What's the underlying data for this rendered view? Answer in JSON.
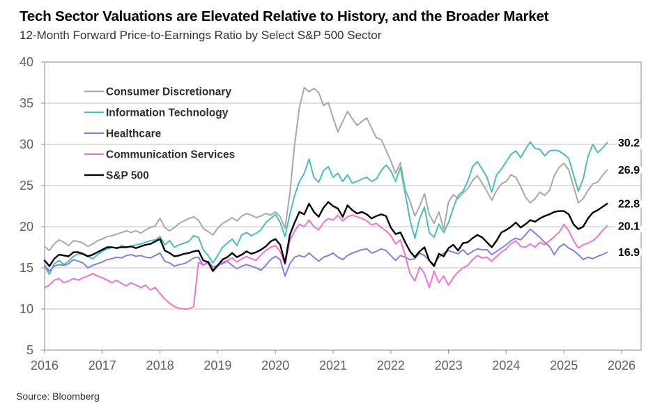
{
  "header": {
    "title": "Tech Sector Valuations are Elevated Relative to History, and the Broader Market",
    "subtitle": "12-Month Forward Price-to-Earnings Ratio by Select S&P 500 Sector"
  },
  "footer": {
    "source": "Source: Bloomberg"
  },
  "chart_data": {
    "type": "line",
    "title": "Tech Sector Valuations are Elevated Relative to History, and the Broader Market",
    "subtitle": "12-Month Forward Price-to-Earnings Ratio by Select S&P 500 Sector",
    "x_start": "2016-01",
    "x_interval": "monthly",
    "x_tick_labels": [
      "2016",
      "2017",
      "2018",
      "2019",
      "2020",
      "2021",
      "2022",
      "2023",
      "2024",
      "2025",
      "2026"
    ],
    "y_ticks": [
      5,
      10,
      15,
      20,
      25,
      30,
      35,
      40
    ],
    "ylim": [
      5,
      40
    ],
    "grid": "horizontal-only",
    "legend_position": "top-left-inside",
    "colors": {
      "axis": "#9b9b9b",
      "grid": "#c2c2c2",
      "tick_label": "#606060",
      "legend_text": "#2e2e2e",
      "end_label_text": "#000000"
    },
    "series": [
      {
        "name": "Consumer Discretionary",
        "color": "#a8a8a8",
        "end_label": "26.9",
        "values": [
          17.6,
          17.1,
          17.9,
          18.4,
          18.1,
          17.7,
          18.3,
          18.2,
          18.0,
          17.6,
          17.9,
          18.3,
          18.5,
          18.8,
          18.9,
          19.1,
          19.3,
          19.5,
          19.3,
          19.5,
          19.2,
          19.6,
          19.9,
          20.1,
          21.0,
          19.9,
          19.5,
          19.9,
          20.4,
          20.7,
          21.0,
          21.2,
          20.8,
          19.8,
          19.4,
          19.0,
          19.8,
          20.4,
          20.7,
          21.1,
          20.7,
          21.3,
          21.6,
          21.4,
          21.1,
          21.3,
          21.6,
          21.4,
          21.8,
          21.2,
          19.8,
          24.0,
          30.0,
          34.5,
          36.9,
          36.4,
          36.8,
          36.3,
          34.7,
          35.1,
          33.2,
          31.5,
          32.8,
          34.0,
          33.1,
          32.3,
          32.8,
          33.2,
          32.0,
          30.8,
          30.6,
          29.3,
          28.0,
          26.5,
          27.8,
          24.5,
          23.1,
          21.3,
          22.5,
          24.0,
          21.5,
          20.4,
          21.8,
          19.7,
          23.0,
          23.9,
          23.4,
          24.1,
          24.6,
          25.6,
          26.2,
          25.3,
          24.3,
          23.2,
          24.4,
          25.2,
          25.5,
          26.3,
          26.0,
          24.9,
          23.6,
          22.9,
          23.4,
          24.2,
          23.8,
          24.4,
          26.2,
          27.2,
          27.7,
          26.9,
          24.9,
          22.9,
          23.4,
          24.4,
          25.2,
          25.4,
          26.2,
          26.9
        ]
      },
      {
        "name": "Information Technology",
        "color": "#45c0b8",
        "end_label": "30.2",
        "values": [
          15.2,
          14.2,
          15.5,
          15.9,
          15.4,
          15.8,
          16.4,
          16.7,
          16.6,
          16.4,
          16.1,
          16.6,
          17.0,
          17.3,
          17.5,
          17.4,
          17.7,
          17.5,
          17.6,
          17.8,
          17.9,
          18.1,
          18.3,
          18.4,
          18.8,
          17.8,
          18.3,
          17.5,
          17.8,
          18.0,
          18.2,
          18.9,
          18.7,
          17.2,
          16.5,
          15.6,
          16.5,
          17.5,
          18.0,
          18.5,
          17.7,
          19.0,
          19.3,
          18.9,
          19.2,
          19.6,
          20.5,
          21.0,
          21.5,
          20.5,
          18.8,
          21.5,
          23.8,
          25.5,
          26.5,
          28.2,
          26.0,
          25.4,
          26.8,
          27.3,
          26.0,
          26.5,
          25.5,
          26.3,
          25.3,
          25.5,
          25.8,
          26.0,
          25.5,
          25.8,
          26.8,
          27.5,
          26.8,
          25.5,
          27.2,
          24.0,
          20.8,
          18.6,
          21.0,
          22.4,
          19.3,
          18.7,
          20.3,
          19.3,
          20.5,
          22.3,
          23.8,
          24.3,
          25.5,
          27.3,
          27.9,
          27.0,
          26.0,
          24.2,
          26.3,
          27.0,
          27.9,
          28.8,
          29.2,
          28.4,
          29.4,
          30.3,
          29.5,
          29.4,
          28.6,
          29.2,
          29.3,
          29.2,
          28.8,
          28.3,
          26.3,
          24.3,
          25.8,
          28.5,
          30.0,
          29.0,
          29.5,
          30.2
        ]
      },
      {
        "name": "Healthcare",
        "color": "#7f80e2",
        "end_label": "16.9",
        "values": [
          15.3,
          14.6,
          15.2,
          15.4,
          15.3,
          15.5,
          16.0,
          15.8,
          15.6,
          15.0,
          15.3,
          15.5,
          15.7,
          16.0,
          16.1,
          16.3,
          16.2,
          16.5,
          16.6,
          16.4,
          16.5,
          16.3,
          16.2,
          16.5,
          16.8,
          15.8,
          15.6,
          15.2,
          15.4,
          15.5,
          15.8,
          16.2,
          16.3,
          15.3,
          15.8,
          15.1,
          15.3,
          15.5,
          15.8,
          15.3,
          14.9,
          15.2,
          15.4,
          15.2,
          15.0,
          14.7,
          15.3,
          16.0,
          16.4,
          16.0,
          14.0,
          15.5,
          16.3,
          16.5,
          16.3,
          16.8,
          16.3,
          15.8,
          16.3,
          16.5,
          16.8,
          16.3,
          16.0,
          16.5,
          16.8,
          17.0,
          17.2,
          17.3,
          16.8,
          17.0,
          17.3,
          17.1,
          16.5,
          15.9,
          16.5,
          16.3,
          16.0,
          16.1,
          16.8,
          16.5,
          15.9,
          15.4,
          16.3,
          16.8,
          17.1,
          16.9,
          16.7,
          17.2,
          16.6,
          17.0,
          17.3,
          17.2,
          17.2,
          16.6,
          17.0,
          17.4,
          17.8,
          18.3,
          18.6,
          18.4,
          19.0,
          19.7,
          19.2,
          18.7,
          18.1,
          17.6,
          16.6,
          17.5,
          17.9,
          17.4,
          17.1,
          16.6,
          16.0,
          16.3,
          16.1,
          16.4,
          16.6,
          16.9
        ]
      },
      {
        "name": "Communication Services",
        "color": "#ef72d4",
        "end_label": "20.1",
        "values": [
          12.6,
          12.9,
          13.5,
          13.7,
          13.2,
          13.4,
          13.7,
          13.5,
          13.8,
          14.0,
          14.3,
          14.0,
          13.8,
          13.5,
          13.2,
          13.5,
          13.1,
          12.8,
          13.2,
          12.9,
          12.6,
          12.9,
          12.3,
          12.6,
          11.9,
          11.2,
          10.7,
          10.3,
          10.1,
          10.0,
          10.0,
          10.3,
          15.7,
          15.3,
          15.6,
          14.8,
          15.2,
          15.7,
          15.9,
          16.2,
          15.7,
          16.1,
          16.4,
          16.1,
          15.9,
          16.6,
          17.1,
          17.5,
          17.7,
          17.0,
          15.4,
          18.3,
          19.5,
          20.3,
          20.0,
          20.8,
          20.0,
          19.6,
          20.5,
          21.0,
          20.8,
          21.4,
          20.7,
          21.2,
          21.4,
          21.2,
          21.0,
          20.7,
          20.2,
          20.4,
          19.9,
          19.5,
          18.9,
          17.9,
          18.4,
          16.5,
          14.3,
          13.4,
          15.1,
          14.3,
          12.6,
          14.6,
          13.2,
          14.0,
          12.9,
          13.8,
          14.5,
          15.0,
          15.3,
          16.0,
          16.5,
          16.2,
          16.3,
          15.8,
          16.4,
          16.9,
          17.3,
          17.9,
          18.3,
          17.6,
          17.5,
          17.9,
          17.5,
          18.1,
          17.8,
          18.3,
          18.8,
          19.3,
          20.3,
          19.5,
          18.3,
          17.4,
          17.8,
          18.0,
          18.3,
          18.8,
          19.5,
          20.1
        ]
      },
      {
        "name": "S&P 500",
        "color": "#000000",
        "end_label": "22.8",
        "values": [
          15.9,
          15.2,
          16.1,
          16.6,
          16.5,
          16.4,
          16.9,
          16.9,
          16.7,
          16.4,
          16.6,
          16.9,
          17.2,
          17.5,
          17.5,
          17.4,
          17.5,
          17.5,
          17.6,
          17.4,
          17.6,
          17.8,
          17.9,
          18.2,
          18.5,
          17.1,
          16.8,
          16.4,
          16.5,
          16.7,
          16.8,
          17.0,
          17.1,
          15.9,
          15.7,
          14.6,
          15.3,
          16.0,
          16.3,
          16.8,
          16.3,
          16.6,
          17.0,
          16.7,
          16.9,
          17.2,
          17.6,
          18.2,
          18.5,
          17.8,
          15.6,
          19.0,
          20.5,
          21.8,
          21.5,
          22.8,
          21.8,
          21.2,
          22.3,
          23.0,
          22.5,
          22.2,
          21.2,
          22.6,
          22.0,
          21.6,
          21.8,
          21.5,
          21.0,
          21.3,
          21.5,
          21.3,
          19.9,
          19.1,
          19.3,
          18.1,
          17.0,
          16.3,
          17.0,
          17.5,
          15.9,
          15.2,
          16.7,
          16.4,
          17.4,
          17.8,
          17.1,
          18.0,
          18.1,
          18.6,
          19.0,
          18.7,
          18.1,
          17.5,
          18.3,
          19.3,
          19.6,
          20.0,
          20.5,
          19.9,
          20.3,
          20.8,
          20.6,
          21.0,
          21.3,
          21.5,
          21.8,
          21.9,
          21.9,
          21.5,
          20.3,
          19.7,
          20.0,
          21.0,
          21.7,
          22.0,
          22.4,
          22.8
        ]
      }
    ]
  }
}
